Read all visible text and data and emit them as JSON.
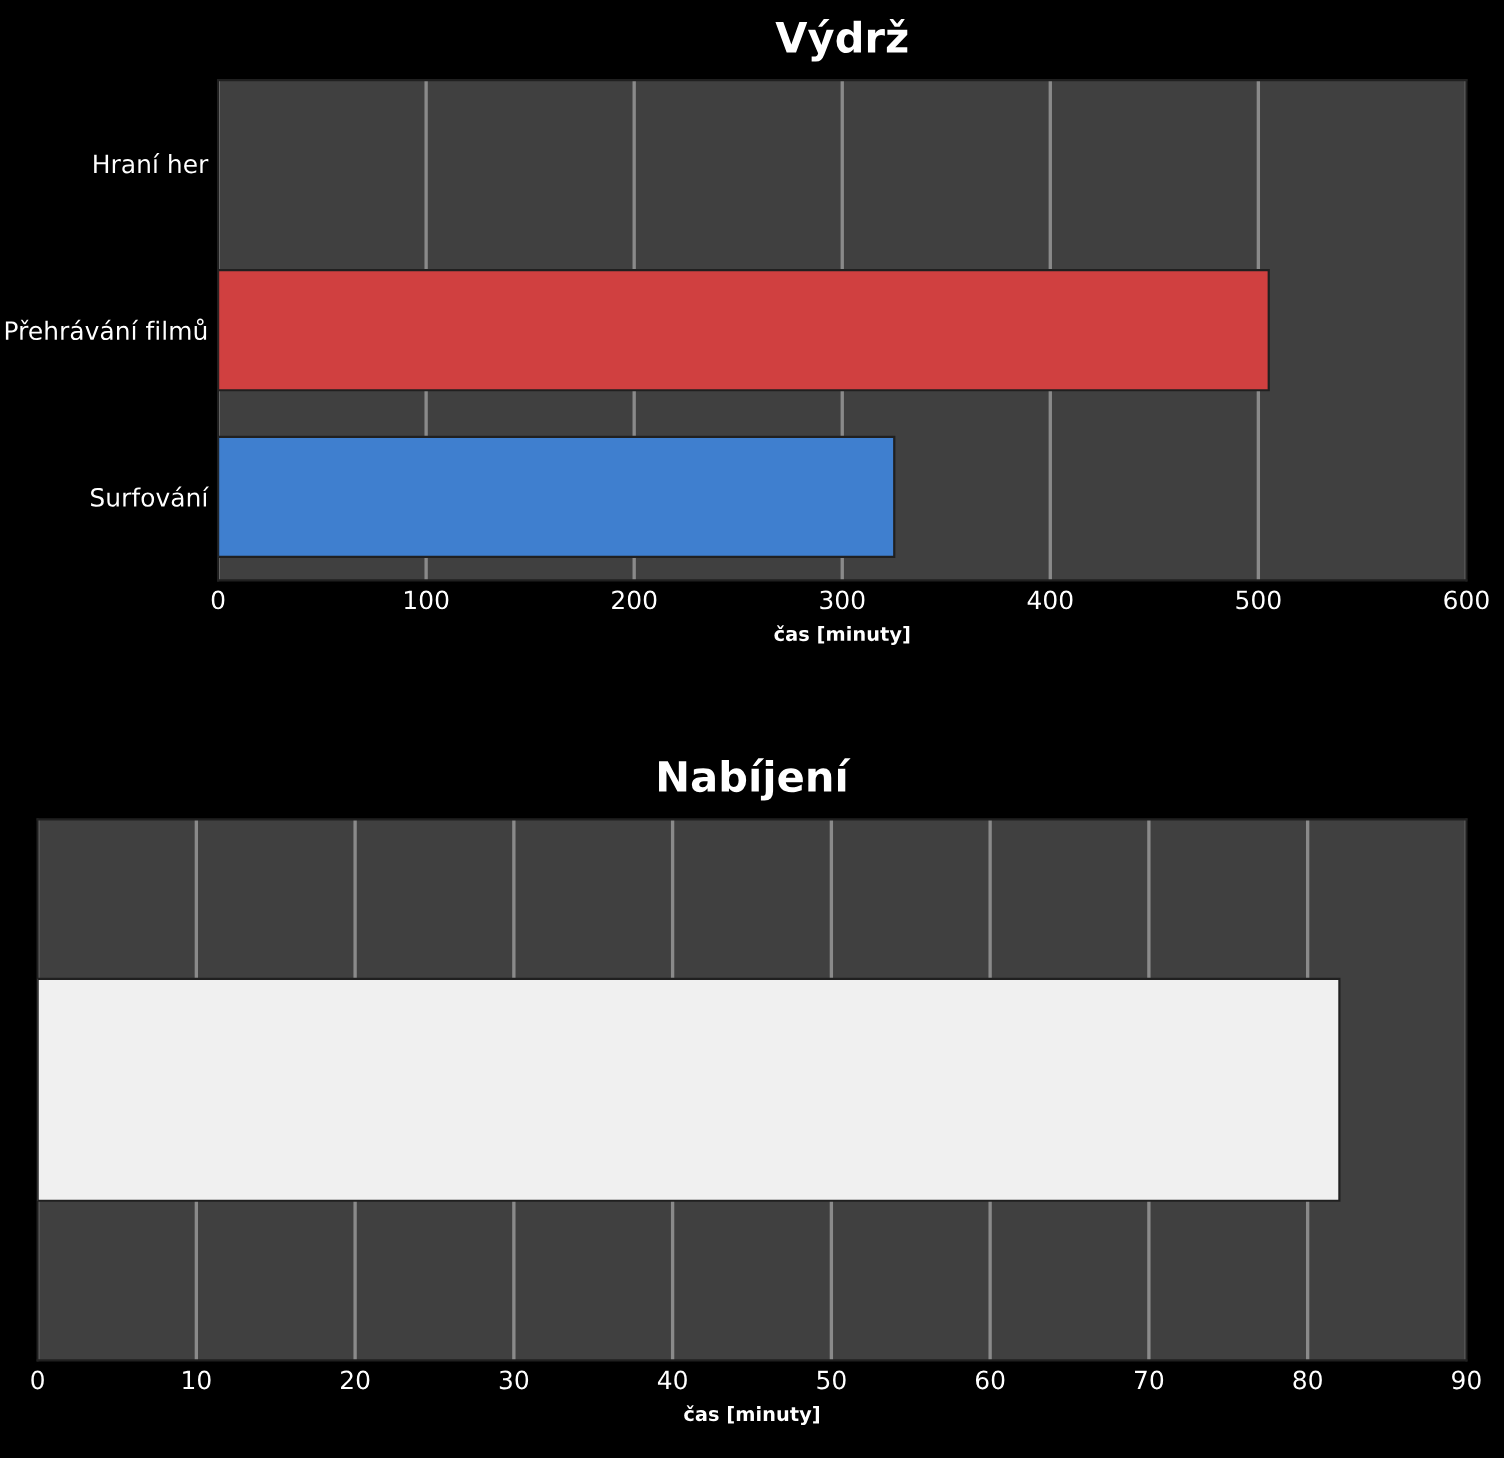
{
  "chart_data": [
    {
      "type": "bar",
      "title": "Výdrž",
      "orientation": "horizontal",
      "categories": [
        "Hraní her",
        "Přehrávání filmů",
        "Surfování"
      ],
      "values": [
        null,
        505,
        325
      ],
      "colors": [
        "#d04040",
        "#d04040",
        "#3f7fcf"
      ],
      "xlabel": "čas [minuty]",
      "xlim": [
        0,
        600
      ],
      "xticks": [
        0,
        100,
        200,
        300,
        400,
        500,
        600
      ],
      "grid": "x"
    },
    {
      "type": "bar",
      "title": "Nabíjení",
      "orientation": "horizontal",
      "categories": [
        null
      ],
      "values": [
        82
      ],
      "colors": [
        "#f0f0f0"
      ],
      "xlabel": "čas [minuty]",
      "xlim": [
        0,
        90
      ],
      "xticks": [
        0,
        10,
        20,
        30,
        40,
        50,
        60,
        70,
        80,
        90
      ],
      "grid": "x"
    }
  ]
}
